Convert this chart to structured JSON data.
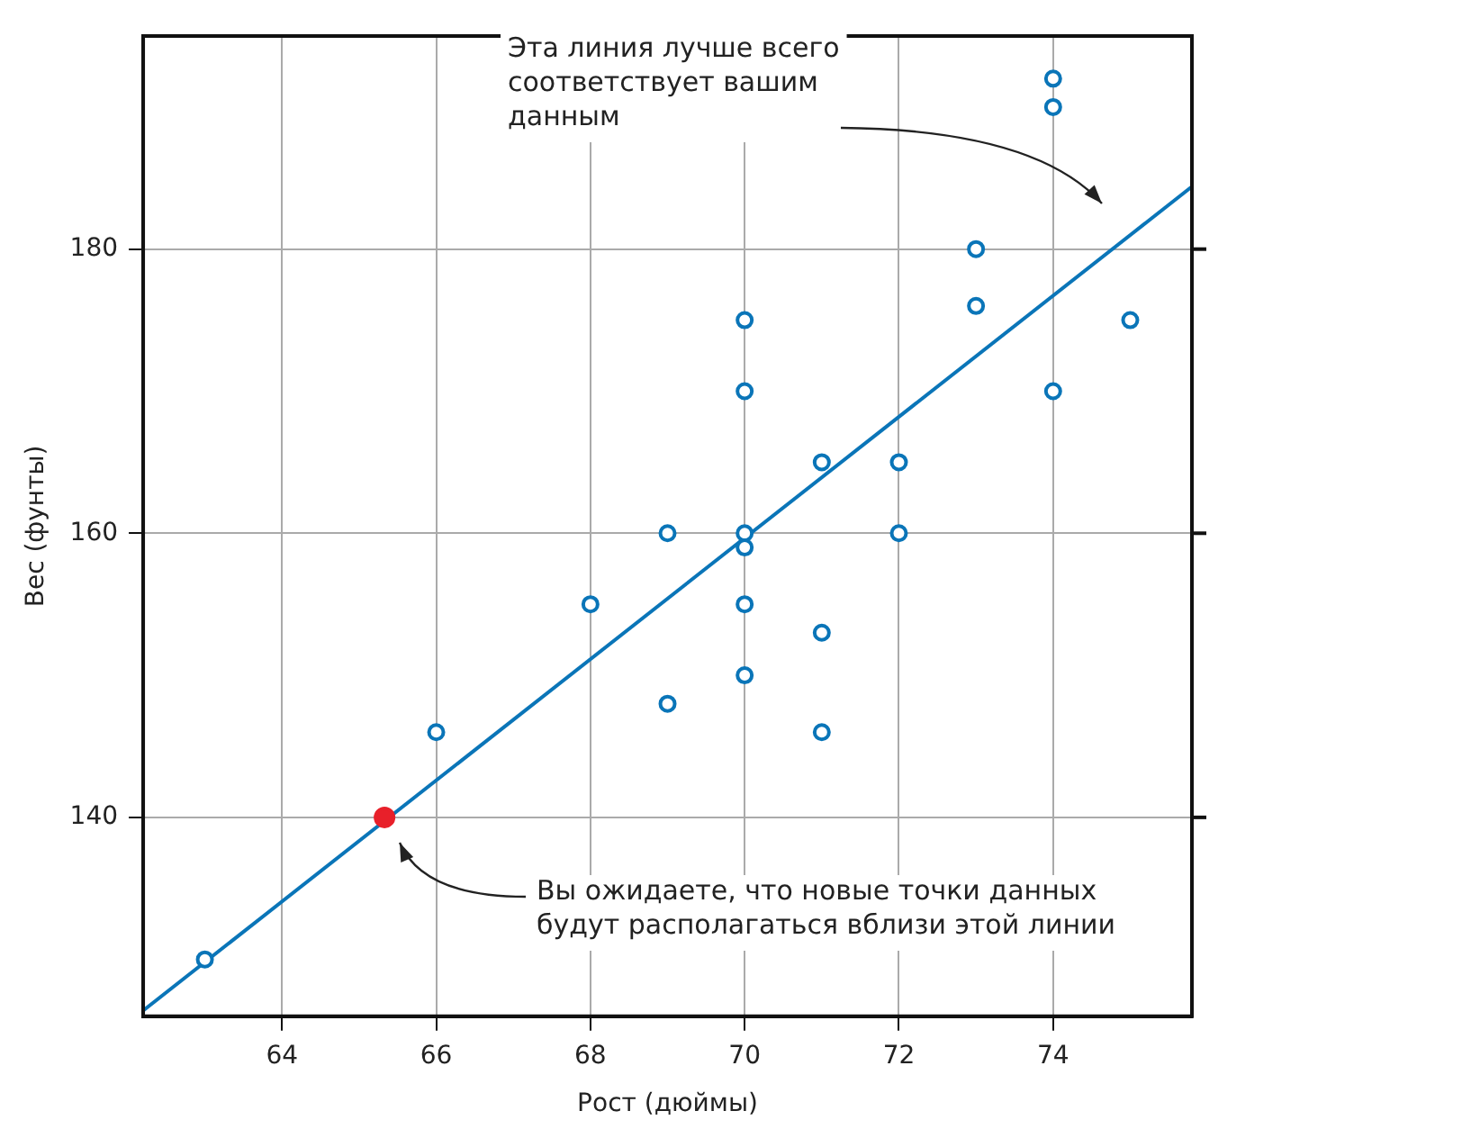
{
  "chart_data": {
    "type": "scatter",
    "xlabel": "Рост (дюймы)",
    "ylabel": "Вес (фунты)",
    "xlim": [
      62.2,
      75.8
    ],
    "ylim": [
      126,
      195
    ],
    "xticks": [
      64,
      66,
      68,
      70,
      72,
      74
    ],
    "yticks": [
      140,
      160,
      180
    ],
    "grid": true,
    "legend": false,
    "marker": "circle",
    "series": [
      {
        "color": "#0a75b8",
        "x": [
          63,
          66,
          68,
          69,
          69,
          70,
          70,
          70,
          70,
          70,
          70,
          71,
          71,
          71,
          72,
          72,
          73,
          73,
          74,
          74,
          74,
          75
        ],
        "values": [
          130,
          146,
          155,
          160,
          148,
          175,
          170,
          160,
          159,
          155,
          150,
          165,
          153,
          146,
          165,
          160,
          180,
          176,
          192,
          190,
          170,
          175
        ]
      },
      {
        "type": "line",
        "color": "#0a75b8",
        "marker": "none",
        "x": [
          62.2,
          75.8
        ],
        "values": [
          126.4,
          184.4
        ]
      },
      {
        "color": "#e8202a",
        "x": [
          65.33
        ],
        "values": [
          140
        ]
      }
    ],
    "annotations": [
      "Эта линия лучше всего\nсоответствует вашим\nданным",
      "Вы ожидаете, что новые точки данных\nбудут располагаться вблизи этой линии"
    ]
  }
}
